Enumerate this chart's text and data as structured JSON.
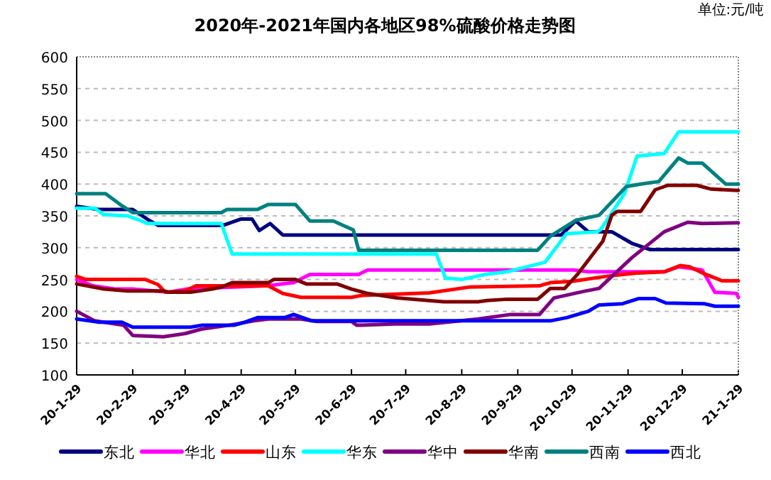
{
  "chart_data": {
    "type": "line",
    "title": "2020年-2021年国内各地区98%硫酸价格走势图",
    "annotations": [
      "单位:元/吨"
    ],
    "xlim": [
      "2020-01-29",
      "2021-01-29"
    ],
    "xticks": [
      {
        "value": "2020-01-29",
        "label": "20-1-29"
      },
      {
        "value": "2020-02-29",
        "label": "20-2-29"
      },
      {
        "value": "2020-03-29",
        "label": "20-3-29"
      },
      {
        "value": "2020-04-29",
        "label": "20-4-29"
      },
      {
        "value": "2020-05-29",
        "label": "20-5-29"
      },
      {
        "value": "2020-06-29",
        "label": "20-6-29"
      },
      {
        "value": "2020-07-29",
        "label": "20-7-29"
      },
      {
        "value": "2020-08-29",
        "label": "20-8-29"
      },
      {
        "value": "2020-09-29",
        "label": "20-9-29"
      },
      {
        "value": "2020-10-29",
        "label": "20-10-29"
      },
      {
        "value": "2020-11-29",
        "label": "20-11-29"
      },
      {
        "value": "2020-12-29",
        "label": "20-12-29"
      },
      {
        "value": "2021-01-29",
        "label": "21-1-29"
      }
    ],
    "ylim": [
      100,
      600
    ],
    "yticks": [
      100,
      150,
      200,
      250,
      300,
      350,
      400,
      450,
      500,
      550,
      600
    ],
    "grid": "y",
    "legend": "bottom",
    "series": [
      {
        "name": "东北",
        "color": "#000080",
        "x": [
          "2020-01-29",
          "2020-02-10",
          "2020-02-29",
          "2020-03-09",
          "2020-03-14",
          "2020-04-19",
          "2020-04-29",
          "2020-05-05",
          "2020-05-09",
          "2020-05-15",
          "2020-05-22",
          "2020-10-23",
          "2020-10-31",
          "2020-11-07",
          "2020-11-20",
          "2020-12-01",
          "2020-12-11",
          "2021-01-29"
        ],
        "values": [
          365,
          360,
          360,
          343,
          335,
          335,
          345,
          345,
          327,
          338,
          320,
          320,
          342,
          325,
          325,
          307,
          297,
          297
        ]
      },
      {
        "name": "华北",
        "color": "#ff00ff",
        "x": [
          "2020-01-29",
          "2020-02-07",
          "2020-02-19",
          "2020-02-29",
          "2020-03-20",
          "2020-03-30",
          "2020-04-15",
          "2020-05-13",
          "2020-05-28",
          "2020-06-06",
          "2020-07-03",
          "2020-07-08",
          "2020-10-30",
          "2020-11-07",
          "2020-12-19",
          "2020-12-27",
          "2021-01-09",
          "2021-01-16",
          "2021-01-28",
          "2021-01-29"
        ],
        "values": [
          250,
          240,
          235,
          235,
          230,
          235,
          237,
          240,
          245,
          258,
          258,
          265,
          265,
          262,
          262,
          270,
          265,
          230,
          228,
          222
        ]
      },
      {
        "name": "山东",
        "color": "#ff0000",
        "x": [
          "2020-01-29",
          "2020-02-03",
          "2020-03-07",
          "2020-03-14",
          "2020-03-18",
          "2020-03-29",
          "2020-04-04",
          "2020-05-14",
          "2020-05-22",
          "2020-06-01",
          "2020-06-29",
          "2020-07-05",
          "2020-08-11",
          "2020-09-02",
          "2020-10-11",
          "2020-10-17",
          "2020-10-29",
          "2020-11-17",
          "2020-12-03",
          "2020-12-19",
          "2020-12-28",
          "2021-01-02",
          "2021-01-11",
          "2021-01-20",
          "2021-01-29"
        ],
        "values": [
          255,
          250,
          250,
          242,
          230,
          232,
          240,
          240,
          228,
          222,
          222,
          225,
          229,
          238,
          240,
          245,
          247,
          255,
          260,
          262,
          272,
          270,
          258,
          248,
          248
        ]
      },
      {
        "name": "华东",
        "color": "#00ffff",
        "x": [
          "2020-01-29",
          "2020-02-08",
          "2020-02-13",
          "2020-02-26",
          "2020-03-05",
          "2020-03-08",
          "2020-04-18",
          "2020-04-24",
          "2020-08-15",
          "2020-08-20",
          "2020-08-29",
          "2020-09-11",
          "2020-09-23",
          "2020-10-14",
          "2020-10-26",
          "2020-11-12",
          "2020-11-14",
          "2020-11-27",
          "2020-12-04",
          "2020-12-19",
          "2020-12-27",
          "2021-01-29"
        ],
        "values": [
          362,
          362,
          352,
          350,
          342,
          338,
          338,
          290,
          290,
          252,
          250,
          258,
          262,
          277,
          322,
          325,
          329,
          385,
          444,
          448,
          482,
          482
        ]
      },
      {
        "name": "华中",
        "color": "#800080",
        "x": [
          "2020-01-29",
          "2020-02-08",
          "2020-02-24",
          "2020-02-29",
          "2020-03-17",
          "2020-03-29",
          "2020-04-07",
          "2020-04-22",
          "2020-05-06",
          "2020-05-14",
          "2020-06-01",
          "2020-06-10",
          "2020-06-29",
          "2020-07-02",
          "2020-07-23",
          "2020-08-11",
          "2020-09-07",
          "2020-09-25",
          "2020-10-11",
          "2020-10-19",
          "2020-11-04",
          "2020-11-13",
          "2020-12-01",
          "2020-12-19",
          "2021-01-01",
          "2021-01-09",
          "2021-01-29"
        ],
        "values": [
          200,
          185,
          178,
          162,
          160,
          165,
          172,
          178,
          185,
          188,
          188,
          184,
          184,
          178,
          180,
          180,
          188,
          195,
          195,
          221,
          231,
          236,
          284,
          325,
          340,
          338,
          339
        ]
      },
      {
        "name": "华南",
        "color": "#800000",
        "x": [
          "2020-01-29",
          "2020-02-13",
          "2020-02-26",
          "2020-03-17",
          "2020-03-20",
          "2020-04-01",
          "2020-04-13",
          "2020-04-18",
          "2020-04-24",
          "2020-05-14",
          "2020-05-17",
          "2020-05-29",
          "2020-06-04",
          "2020-06-21",
          "2020-06-29",
          "2020-07-08",
          "2020-07-24",
          "2020-08-19",
          "2020-09-07",
          "2020-09-12",
          "2020-09-23",
          "2020-10-10",
          "2020-10-17",
          "2020-10-25",
          "2020-11-01",
          "2020-11-15",
          "2020-11-20",
          "2020-11-23",
          "2020-12-06",
          "2020-12-14",
          "2020-12-21",
          "2021-01-06",
          "2021-01-14",
          "2021-01-29"
        ],
        "values": [
          243,
          235,
          232,
          232,
          230,
          230,
          235,
          238,
          245,
          245,
          250,
          250,
          243,
          243,
          235,
          228,
          221,
          215,
          215,
          217,
          219,
          219,
          236,
          236,
          258,
          310,
          351,
          357,
          357,
          391,
          398,
          398,
          392,
          390
        ]
      },
      {
        "name": "西南",
        "color": "#008080",
        "x": [
          "2020-01-29",
          "2020-02-14",
          "2020-02-23",
          "2020-02-29",
          "2020-04-18",
          "2020-04-21",
          "2020-05-08",
          "2020-05-14",
          "2020-05-29",
          "2020-06-06",
          "2020-06-19",
          "2020-06-26",
          "2020-06-30",
          "2020-07-03",
          "2020-10-10",
          "2020-10-17",
          "2020-10-31",
          "2020-11-13",
          "2020-11-28",
          "2020-12-06",
          "2020-12-16",
          "2020-12-27",
          "2021-01-01",
          "2021-01-09",
          "2021-01-22",
          "2021-01-29"
        ],
        "values": [
          385,
          385,
          366,
          355,
          355,
          360,
          360,
          368,
          368,
          342,
          342,
          333,
          328,
          296,
          296,
          318,
          343,
          351,
          396,
          400,
          404,
          441,
          433,
          433,
          400,
          400
        ]
      },
      {
        "name": "西北",
        "color": "#0000ff",
        "x": [
          "2020-01-29",
          "2020-02-10",
          "2020-02-23",
          "2020-02-29",
          "2020-04-01",
          "2020-04-07",
          "2020-04-25",
          "2020-04-30",
          "2020-05-08",
          "2020-05-23",
          "2020-05-28",
          "2020-06-04",
          "2020-06-07",
          "2020-10-17",
          "2020-10-26",
          "2020-11-07",
          "2020-11-13",
          "2020-11-26",
          "2020-12-05",
          "2020-12-14",
          "2020-12-20",
          "2021-01-10",
          "2021-01-16",
          "2021-01-29"
        ],
        "values": [
          188,
          183,
          183,
          175,
          175,
          178,
          178,
          182,
          190,
          190,
          195,
          188,
          185,
          185,
          190,
          200,
          210,
          212,
          220,
          220,
          213,
          212,
          208,
          208
        ]
      }
    ]
  }
}
